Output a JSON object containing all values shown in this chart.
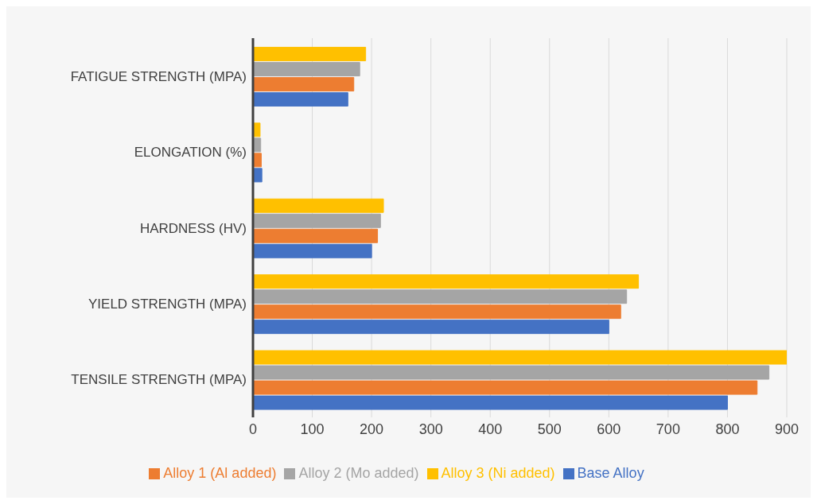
{
  "chart_data": {
    "type": "bar",
    "orientation": "horizontal",
    "categories": [
      "FATIGUE STRENGTH (MPA)",
      "ELONGATION (%)",
      "HARDNESS (HV)",
      "YIELD STRENGTH (MPA)",
      "TENSILE STRENGTH (MPA)"
    ],
    "series": [
      {
        "name": "Alloy 3 (Ni added)",
        "color": "#ffc000",
        "values": [
          190,
          12,
          220,
          650,
          900
        ]
      },
      {
        "name": "Alloy 2 (Mo added)",
        "color": "#a5a5a5",
        "values": [
          180,
          13,
          215,
          630,
          870
        ]
      },
      {
        "name": "Alloy 1 (Al added)",
        "color": "#ed7d31",
        "values": [
          170,
          14,
          210,
          620,
          850
        ]
      },
      {
        "name": "Base Alloy",
        "color": "#4472c4",
        "values": [
          160,
          15,
          200,
          600,
          800
        ]
      }
    ],
    "xlim": [
      0,
      900
    ],
    "xticks": [
      0,
      100,
      200,
      300,
      400,
      500,
      600,
      700,
      800,
      900
    ],
    "grid": "x",
    "legend": "bottom"
  }
}
